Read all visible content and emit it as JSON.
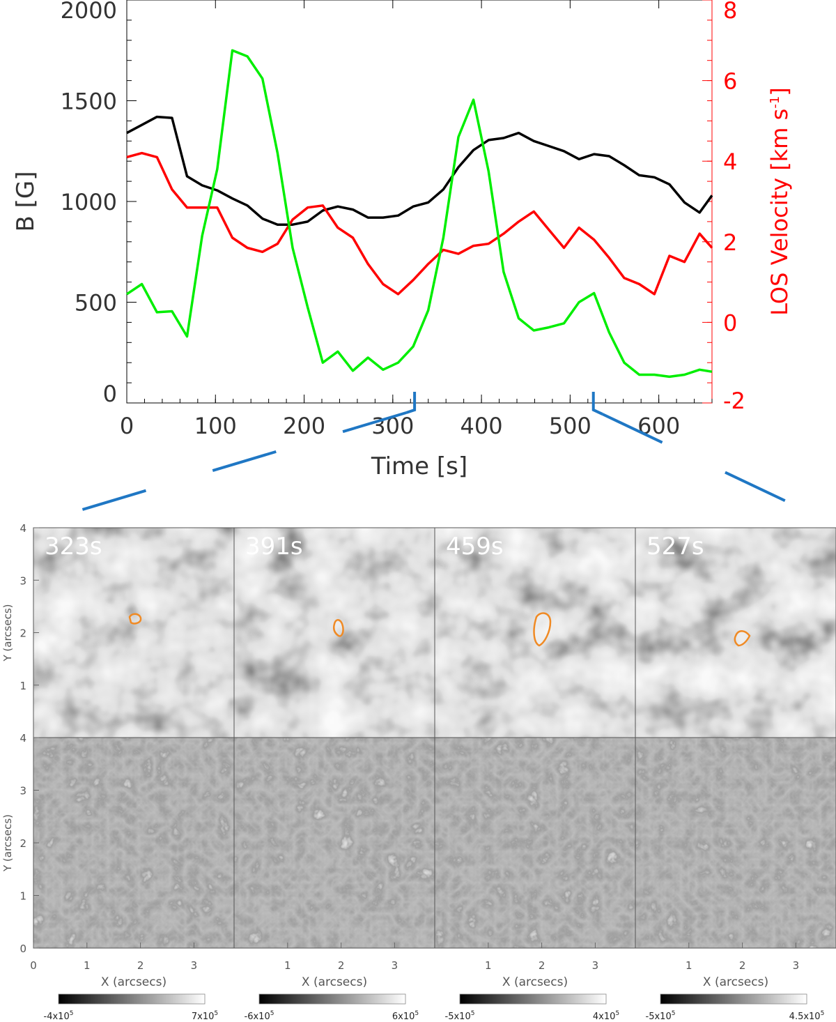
{
  "chart_data": [
    {
      "type": "line",
      "xlabel": "Time [s]",
      "ylabel": "B [G]",
      "y2label": "LOS Velocity [km s",
      "y2label_sup": "-1",
      "y2label_tail": "]",
      "xlim": [
        0,
        660
      ],
      "ylim": [
        0,
        2000
      ],
      "y2lim": [
        -2,
        8
      ],
      "x_ticks": [
        "0",
        "100",
        "200",
        "300",
        "400",
        "500",
        "600"
      ],
      "y_ticks": [
        "0",
        "500",
        "1000",
        "1500",
        "2000"
      ],
      "y2_ticks": [
        "-2",
        "0",
        "2",
        "4",
        "6",
        "8"
      ],
      "grid": false,
      "series": [
        {
          "axis": "left",
          "color": "#000000",
          "x": [
            0,
            17,
            34,
            51,
            68,
            85,
            102,
            119,
            136,
            153,
            170,
            187,
            204,
            221,
            238,
            255,
            272,
            289,
            306,
            323,
            340,
            357,
            374,
            391,
            408,
            425,
            442,
            459,
            476,
            493,
            510,
            527,
            544,
            561,
            578,
            595,
            612,
            629,
            646,
            660
          ],
          "values": [
            1340,
            1380,
            1420,
            1415,
            1125,
            1080,
            1055,
            1015,
            980,
            915,
            885,
            885,
            900,
            955,
            975,
            960,
            920,
            920,
            930,
            975,
            995,
            1060,
            1170,
            1255,
            1305,
            1315,
            1340,
            1300,
            1275,
            1250,
            1210,
            1235,
            1225,
            1180,
            1130,
            1120,
            1085,
            995,
            945,
            1030
          ]
        },
        {
          "axis": "right",
          "color": "#ff0000",
          "x": [
            0,
            17,
            34,
            51,
            68,
            85,
            102,
            119,
            136,
            153,
            170,
            187,
            204,
            221,
            238,
            255,
            272,
            289,
            306,
            323,
            340,
            357,
            374,
            391,
            408,
            425,
            442,
            459,
            476,
            493,
            510,
            527,
            544,
            561,
            578,
            595,
            612,
            629,
            646,
            660
          ],
          "values": [
            4.1,
            4.2,
            4.1,
            3.3,
            2.85,
            2.85,
            2.85,
            2.1,
            1.85,
            1.75,
            1.95,
            2.55,
            2.85,
            2.9,
            2.35,
            2.1,
            1.45,
            0.95,
            0.7,
            1.05,
            1.45,
            1.8,
            1.7,
            1.9,
            1.95,
            2.2,
            2.5,
            2.75,
            2.3,
            1.85,
            2.35,
            2.05,
            1.6,
            1.1,
            0.95,
            0.7,
            1.65,
            1.5,
            2.2,
            1.85
          ]
        },
        {
          "axis": "left",
          "color": "#00ee00",
          "x": [
            0,
            17,
            34,
            51,
            68,
            85,
            102,
            119,
            136,
            153,
            170,
            187,
            204,
            221,
            238,
            255,
            272,
            289,
            306,
            323,
            340,
            357,
            374,
            391,
            408,
            425,
            442,
            459,
            476,
            493,
            510,
            527,
            544,
            561,
            578,
            595,
            612,
            629,
            646,
            660
          ],
          "values": [
            540,
            590,
            450,
            455,
            330,
            830,
            1160,
            1750,
            1720,
            1610,
            1240,
            770,
            475,
            200,
            255,
            160,
            225,
            165,
            200,
            280,
            460,
            820,
            1320,
            1505,
            1150,
            650,
            420,
            360,
            375,
            395,
            500,
            545,
            350,
            200,
            140,
            140,
            130,
            140,
            165,
            155
          ]
        }
      ],
      "bracket_markers_time": [
        323,
        527
      ]
    },
    {
      "type": "heatmap",
      "panels": [
        {
          "label": "323s",
          "contour": true
        },
        {
          "label": "391s",
          "contour": true
        },
        {
          "label": "459s",
          "contour": true
        },
        {
          "label": "527s",
          "contour": true
        }
      ],
      "ylabel": "Y (arcsecs)",
      "xlabel": "X (arcsecs)",
      "y_ticks": [
        "0",
        "1",
        "2",
        "3",
        "4"
      ],
      "x_ticks_first": [
        "0",
        "1",
        "2",
        "3"
      ],
      "x_ticks_other": [
        "1",
        "2",
        "3"
      ],
      "colorbars": [
        {
          "min": "-4x10",
          "min_exp": "5",
          "max": "7x10",
          "max_exp": "5"
        },
        {
          "min": "-6x10",
          "min_exp": "5",
          "max": "6x10",
          "max_exp": "5"
        },
        {
          "min": "-5x10",
          "min_exp": "5",
          "max": "4x10",
          "max_exp": "5"
        },
        {
          "min": "-5x10",
          "min_exp": "5",
          "max": "4.5x10",
          "max_exp": "5"
        }
      ],
      "contour_color": "#f08a24",
      "bracket_color": "#1f77c4"
    }
  ]
}
